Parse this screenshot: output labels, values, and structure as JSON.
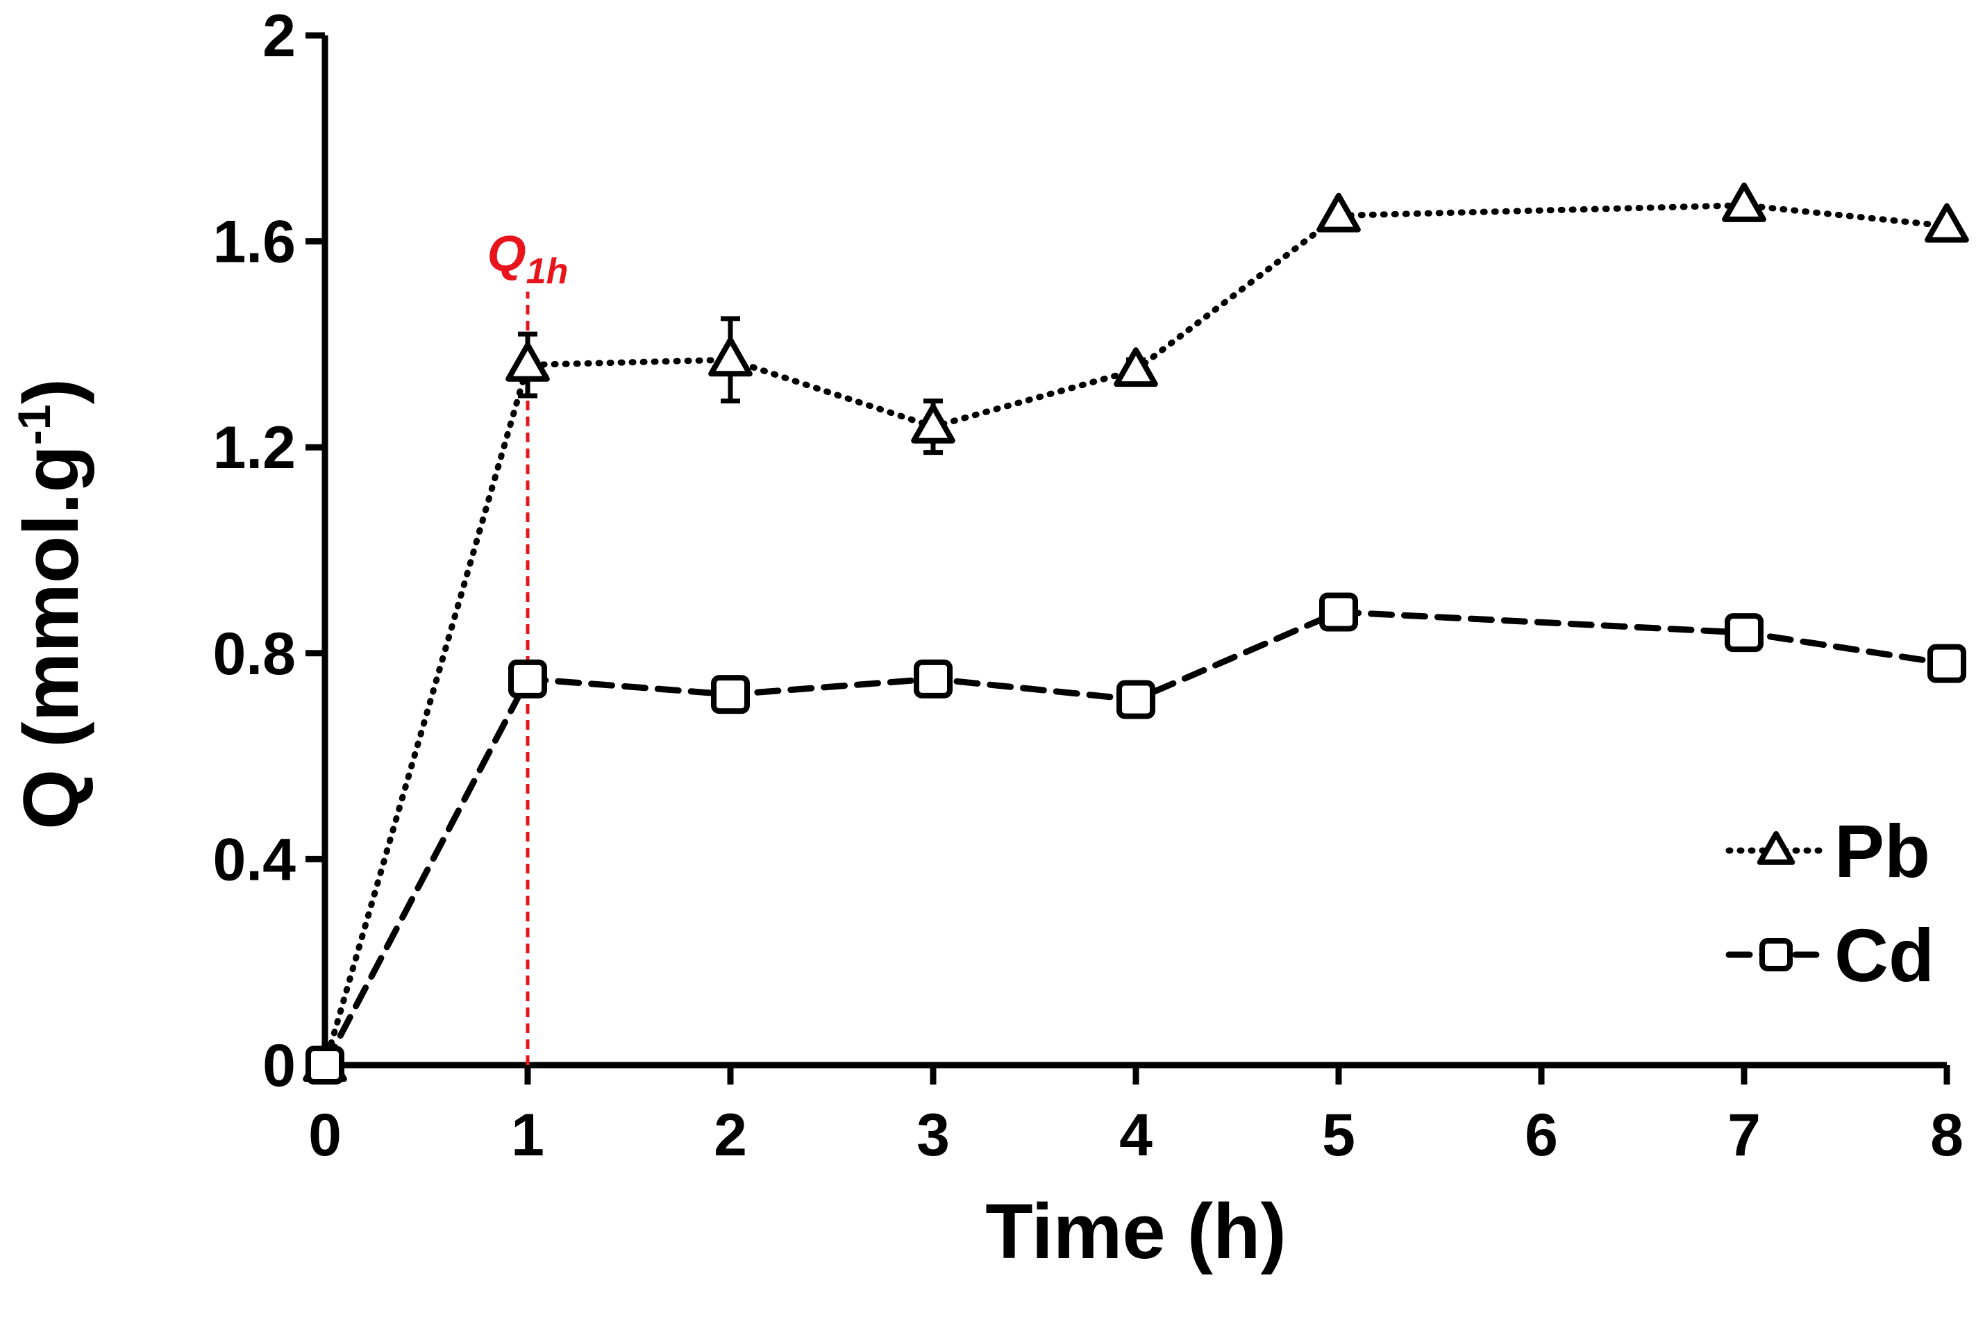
{
  "chart_data": {
    "type": "line",
    "x_label": "Time (h)",
    "y_label": {
      "text": "Q (mmol.g",
      "superscript": "-1",
      "suffix": ")"
    },
    "x": [
      0,
      1,
      2,
      3,
      4,
      5,
      7,
      8
    ],
    "series": [
      {
        "name": "Pb",
        "color": "#000000",
        "marker": "triangle",
        "line_style": "dotted",
        "values": [
          0,
          1.36,
          1.37,
          1.24,
          1.35,
          1.65,
          1.67,
          1.63
        ],
        "errors": [
          0,
          0.06,
          0.08,
          0.05,
          0.02,
          0.01,
          0.01,
          0.01
        ]
      },
      {
        "name": "Cd",
        "color": "#000000",
        "marker": "square",
        "line_style": "dashed",
        "values": [
          0,
          0.75,
          0.72,
          0.75,
          0.71,
          0.88,
          0.84,
          0.78
        ]
      }
    ],
    "xlim": [
      0,
      8
    ],
    "xticks": [
      0,
      1,
      2,
      3,
      4,
      5,
      6,
      7,
      8
    ],
    "ylim": [
      0,
      2
    ],
    "yticks": [
      0,
      0.4,
      0.8,
      1.2,
      1.6,
      2
    ],
    "legend": "lower right",
    "annotation": {
      "text": "Q",
      "subscript": "1h",
      "x": 1,
      "color": "#e8141b"
    }
  }
}
